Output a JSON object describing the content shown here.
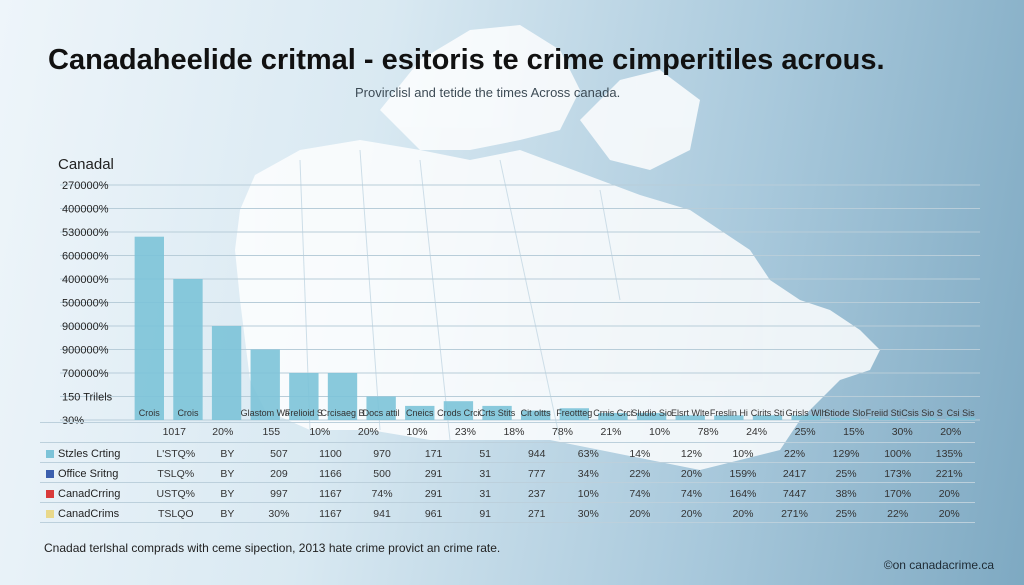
{
  "header": {
    "title": "Canadaheelide critmal - esitoris te crime cimperitiles acrous.",
    "subtitle": "Provirclisl and tetide the times Across canada."
  },
  "footer": {
    "caption": "Cnadad terlshal comprads with ceme sipection, 2013 hate crime provict an crime rate.",
    "source": "©on canadacrime.ca"
  },
  "chart_data": {
    "type": "bar",
    "ylabel": "Canadal",
    "y_tick_labels": [
      "270000%",
      "400000%",
      "530000%",
      "600000%",
      "400000%",
      "500000%",
      "900000%",
      "900000%",
      "700000%",
      "150 Trilels",
      "30%"
    ],
    "ylim": [
      0,
      100
    ],
    "grid": true,
    "categories": [
      "",
      "",
      "",
      "",
      "",
      "",
      "",
      "",
      "",
      "",
      "",
      "",
      "",
      "",
      "",
      "",
      "",
      "",
      "",
      "",
      "",
      ""
    ],
    "values": [
      78,
      60,
      40,
      30,
      20,
      20,
      10,
      6,
      8,
      6,
      4,
      5,
      3,
      3,
      2,
      2,
      2,
      2,
      1,
      1,
      1,
      1
    ],
    "bar_labels": [
      "Crois",
      "Crois",
      "",
      "Glastom Wagat Sisurid",
      "Frelioid Stiiom Bialitg",
      "Crcisaeg Biudioh",
      "Docs attily",
      "Cneics",
      "Crods Crcis Wigs",
      "Crts Stits Sleg",
      "Cit oltts Plotts",
      "Freottteg Trtiids",
      "Crnis Crcis Stbilt",
      "Sludio Siode Ssic",
      "Elsrt Wlte Sllt",
      "Freslin Hiisc Stit",
      "Cirits Stils",
      "Grisls Wlhio Sitid",
      "Stiode Sloids",
      "Freiid Stittiid",
      "Csis Sio Stot",
      "Csi Sis"
    ],
    "table": {
      "header_row": [
        "1017",
        "20%",
        "155",
        "10%",
        "20%",
        "10%",
        "23%",
        "18%",
        "78%",
        "21%",
        "10%",
        "78%",
        "24%",
        "25%",
        "15%",
        "30%",
        "20%"
      ],
      "rows": [
        {
          "name": "Stzles Crting",
          "color": "#7cc3d8",
          "values": [
            "L'STQ%",
            "BY",
            "507",
            "1100",
            "970",
            "171",
            "51",
            "944",
            "63%",
            "14%",
            "12%",
            "10%",
            "22%",
            "129%",
            "100%",
            "135%"
          ]
        },
        {
          "name": "Office Sritng",
          "color": "#3b5fae",
          "values": [
            "TSLQ%",
            "BY",
            "209",
            "1166",
            "500",
            "291",
            "31",
            "777",
            "34%",
            "22%",
            "20%",
            "159%",
            "2417",
            "25%",
            "173%",
            "221%"
          ]
        },
        {
          "name": "CanadCrring",
          "color": "#d93a3a",
          "values": [
            "USTQ%",
            "BY",
            "997",
            "1167",
            "74%",
            "291",
            "31",
            "237",
            "10%",
            "74%",
            "74%",
            "164%",
            "7447",
            "38%",
            "170%",
            "20%"
          ]
        },
        {
          "name": "CanadCrims",
          "color": "#e9d88a",
          "values": [
            "TSLQO",
            "BY",
            "30%",
            "1167",
            "941",
            "961",
            "91",
            "271",
            "30%",
            "20%",
            "20%",
            "20%",
            "271%",
            "25%",
            "22%",
            "20%"
          ]
        }
      ]
    }
  }
}
